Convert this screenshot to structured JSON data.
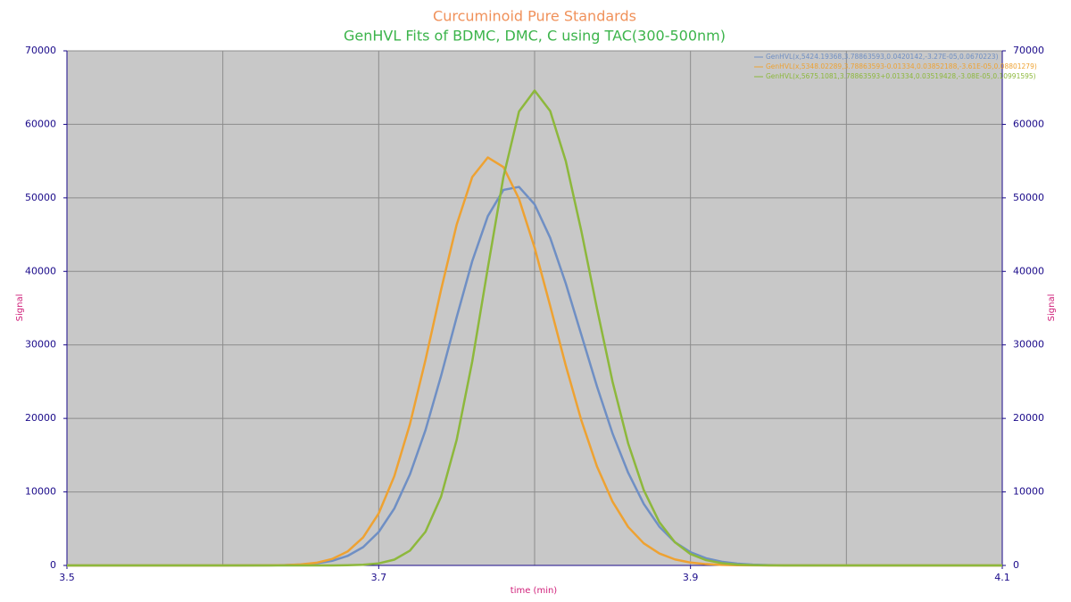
{
  "chart_data": {
    "type": "line",
    "title": "Curcuminoid Pure Standards",
    "subtitle": "GenHVL Fits of BDMC, DMC, C using TAC(300-500nm)",
    "xlabel": "time (min)",
    "ylabel": "Signal",
    "y2label": "Signal",
    "x": [
      3.5,
      3.6,
      3.63,
      3.64,
      3.65,
      3.66,
      3.67,
      3.68,
      3.69,
      3.7,
      3.71,
      3.72,
      3.73,
      3.74,
      3.75,
      3.76,
      3.77,
      3.78,
      3.79,
      3.8,
      3.81,
      3.82,
      3.83,
      3.84,
      3.85,
      3.86,
      3.87,
      3.88,
      3.89,
      3.9,
      3.91,
      3.92,
      3.93,
      3.94,
      3.95,
      3.96,
      4.0,
      4.1
    ],
    "series": [
      {
        "name": "GenHVL(x,5424.19368,3.78863593,0.0420142,-3.27E-05,0.0670223)",
        "color": "#6f8fc4",
        "values": [
          0,
          0,
          15,
          47,
          118,
          280,
          620,
          1290,
          2490,
          4550,
          7740,
          12370,
          18400,
          25790,
          33760,
          41400,
          47520,
          51080,
          51490,
          49120,
          44560,
          38350,
          31360,
          24350,
          17950,
          12620,
          8380,
          5280,
          3160,
          1800,
          980,
          500,
          245,
          113,
          50,
          20,
          0,
          0
        ]
      },
      {
        "name": "GenHVL(x,5348.02289,3.78863593-0.01334,0.03852188,-3.61E-05,0.08801279)",
        "color": "#eea232",
        "values": [
          0,
          0,
          17,
          51,
          140,
          360,
          870,
          1890,
          3810,
          7080,
          12140,
          19200,
          27950,
          37500,
          46360,
          52830,
          55500,
          54190,
          49860,
          43220,
          35300,
          27180,
          19720,
          13470,
          8680,
          5240,
          3010,
          1630,
          820,
          390,
          175,
          75,
          30,
          12,
          5,
          2,
          0,
          0
        ]
      },
      {
        "name": "GenHVL(x,5675.1081,3.78863593+0.01334,0.03519428,-3.08E-05,0.10991595)",
        "color": "#8db83c",
        "values": [
          0,
          0,
          0,
          0,
          1,
          2,
          6,
          25,
          88,
          280,
          790,
          2010,
          4580,
          9350,
          17080,
          27750,
          40480,
          52850,
          61750,
          64600,
          61810,
          55000,
          45460,
          34960,
          24990,
          16610,
          10260,
          5890,
          3150,
          1550,
          720,
          310,
          120,
          45,
          15,
          5,
          0,
          0
        ]
      }
    ],
    "xlim": [
      3.5,
      4.1
    ],
    "xticks": [
      3.5,
      3.7,
      3.9,
      4.1
    ],
    "xgrid": [
      3.5,
      3.6,
      3.7,
      3.8,
      3.9,
      4.0,
      4.1
    ],
    "ylim": [
      0,
      70000
    ],
    "yticks": [
      0,
      10000,
      20000,
      30000,
      40000,
      50000,
      60000,
      70000
    ],
    "y2lim": [
      0,
      70000
    ],
    "y2ticks": [
      0,
      10000,
      20000,
      30000,
      40000,
      50000,
      60000,
      70000
    ],
    "grid": true,
    "legend": "upper right"
  }
}
